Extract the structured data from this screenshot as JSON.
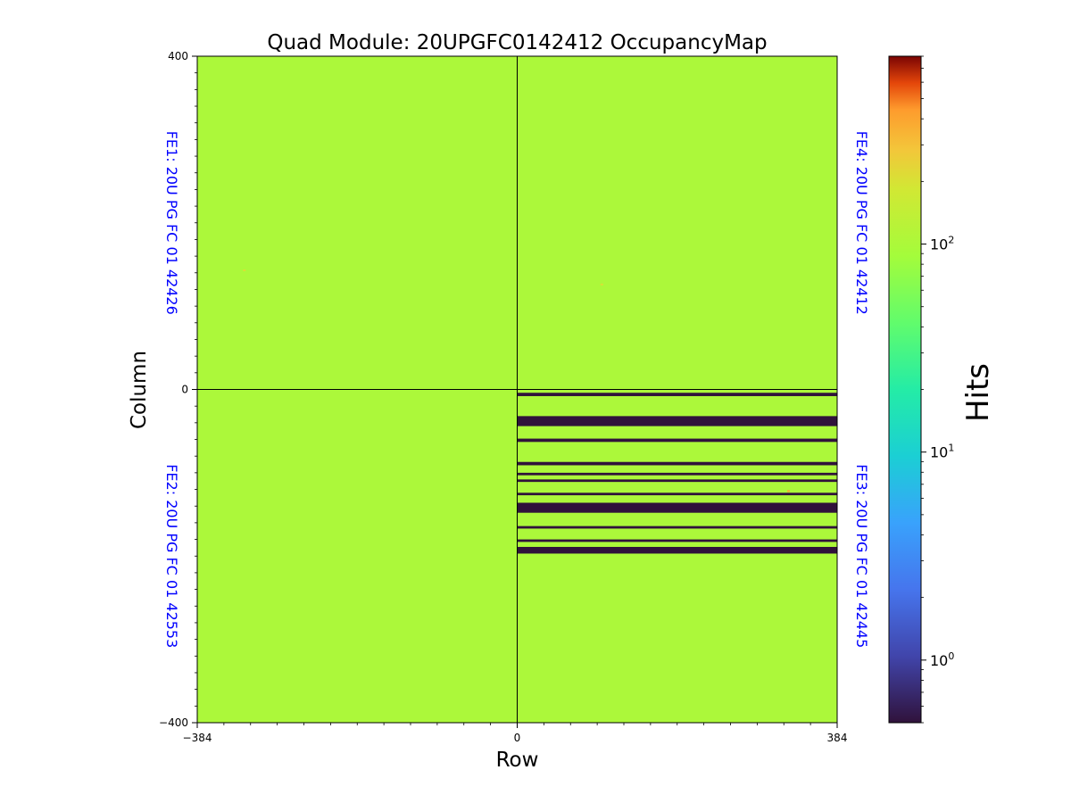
{
  "chart_data": {
    "type": "heatmap",
    "title": "Quad Module: 20UPGFC0142412 OccupancyMap",
    "xlabel": "Row",
    "ylabel": "Column",
    "xlim": [
      -384,
      384
    ],
    "ylim": [
      -400,
      400
    ],
    "x_ticks": [
      {
        "value": -384,
        "label": "−384"
      },
      {
        "value": 0,
        "label": "0"
      },
      {
        "value": 384,
        "label": "384"
      }
    ],
    "y_ticks": [
      {
        "value": 400,
        "label": "400"
      },
      {
        "value": 0,
        "label": "0"
      },
      {
        "value": -400,
        "label": "−400"
      }
    ],
    "divider_lines": {
      "x": 0,
      "y": 0
    },
    "quadrants": [
      {
        "name": "FE1",
        "label": "FE1: 20U PG FC 01 42426",
        "x_range": [
          -384,
          0
        ],
        "y_range": [
          0,
          400
        ],
        "label_side": "left",
        "fill_hits": 100
      },
      {
        "name": "FE2",
        "label": "FE2: 20U PG FC 01 42553",
        "x_range": [
          -384,
          0
        ],
        "y_range": [
          -400,
          0
        ],
        "label_side": "left",
        "fill_hits": 100
      },
      {
        "name": "FE3",
        "label": "FE3: 20U PG FC 01 42445",
        "x_range": [
          0,
          384
        ],
        "y_range": [
          -400,
          0
        ],
        "label_side": "right",
        "fill_hits": 100
      },
      {
        "name": "FE4",
        "label": "FE4: 20U PG FC 01 42412",
        "x_range": [
          0,
          384
        ],
        "y_range": [
          0,
          400
        ],
        "label_side": "right",
        "fill_hits": 100
      }
    ],
    "dead_bands": [
      {
        "quadrant": "FE3",
        "y_range": [
          -8,
          -4
        ],
        "hits": 0.5
      },
      {
        "quadrant": "FE3",
        "y_range": [
          -44,
          -32
        ],
        "hits": 0.5
      },
      {
        "quadrant": "FE3",
        "y_range": [
          -63,
          -59
        ],
        "hits": 0.5
      },
      {
        "quadrant": "FE3",
        "y_range": [
          -91,
          -87
        ],
        "hits": 0.5
      },
      {
        "quadrant": "FE3",
        "y_range": [
          -103,
          -100
        ],
        "hits": 0.5
      },
      {
        "quadrant": "FE3",
        "y_range": [
          -111,
          -108
        ],
        "hits": 0.5
      },
      {
        "quadrant": "FE3",
        "y_range": [
          -127,
          -124
        ],
        "hits": 0.5
      },
      {
        "quadrant": "FE3",
        "y_range": [
          -148,
          -136
        ],
        "hits": 0.5
      },
      {
        "quadrant": "FE3",
        "y_range": [
          -167,
          -164
        ],
        "hits": 0.5
      },
      {
        "quadrant": "FE3",
        "y_range": [
          -183,
          -180
        ],
        "hits": 0.5
      },
      {
        "quadrant": "FE3",
        "y_range": [
          -197,
          -189
        ],
        "hits": 0.5
      }
    ],
    "hot_pixels": [
      {
        "x": -328,
        "y": 143,
        "hits": 200
      },
      {
        "x": 101,
        "y": 126,
        "hits": 200
      },
      {
        "x": 325,
        "y": -122,
        "hits": 400
      }
    ],
    "colorbar": {
      "label": "Hits",
      "scale": "log",
      "colormap": "turbo",
      "range": [
        0.5,
        800
      ],
      "ticks": [
        {
          "value": 1,
          "base": "10",
          "exp": "0"
        },
        {
          "value": 10,
          "base": "10",
          "exp": "1"
        },
        {
          "value": 100,
          "base": "10",
          "exp": "2"
        }
      ]
    },
    "colors": {
      "label_text": "#0000ff",
      "axis": "#000000"
    }
  }
}
